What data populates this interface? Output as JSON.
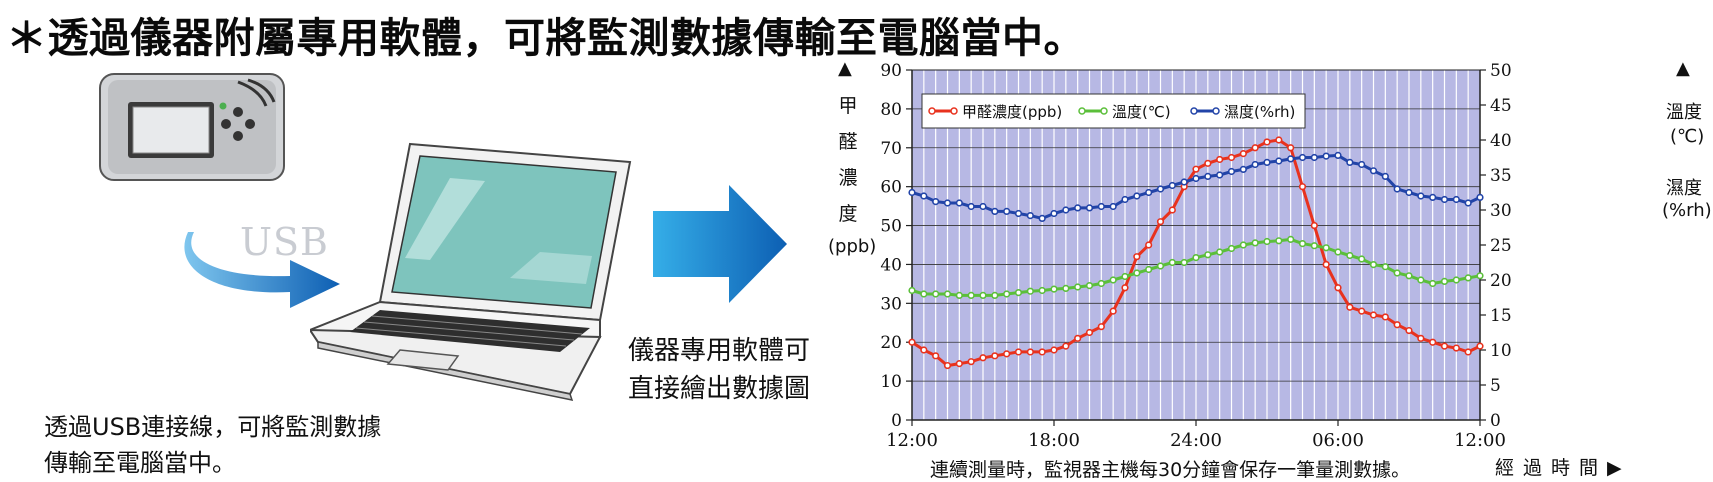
{
  "heading": "＊透過儀器附屬專用軟體，可將監測數據傳輸至電腦當中。",
  "usb_label": "USB",
  "caption_left": "透過USB連接線，可將監測數據\n傳輸至電腦當中。",
  "caption_mid": "儀器專用軟體可\n直接繪出數據圖",
  "footer": "連續測量時，監視器主機每30分鐘會保存一筆量測數據。",
  "x_axis_title": "經過時間",
  "colors": {
    "plot_bg": "#b7b8e4",
    "grid": "#ffffff",
    "formaldehyde": "#e8321e",
    "temperature": "#5bbf3a",
    "humidity": "#2244a8",
    "arrow_light": "#2fa4e3",
    "arrow_dark": "#0d5fb3"
  },
  "chart_data": {
    "type": "line",
    "grid": true,
    "legend_position": "top-left",
    "x_tick_labels": [
      "12:00",
      "18:00",
      "24:00",
      "06:00",
      "12:00"
    ],
    "x_interval_minutes": 30,
    "y_left": {
      "title_chars": [
        "甲",
        "醛",
        "濃",
        "度"
      ],
      "unit": "(ppb)",
      "range": [
        0,
        90
      ],
      "ticks": [
        0,
        10,
        20,
        30,
        40,
        50,
        60,
        70,
        80,
        90
      ]
    },
    "y_right": {
      "temp_label": "溫度",
      "temp_unit": "(℃)",
      "hum_label": "濕度",
      "hum_unit": "(%rh)",
      "range": [
        0,
        50
      ],
      "ticks": [
        0,
        5,
        10,
        15,
        20,
        25,
        30,
        35,
        40,
        45,
        50
      ]
    },
    "series": [
      {
        "name": "甲醛濃度(ppb)",
        "axis": "left",
        "color_key": "formaldehyde",
        "values": [
          20,
          18,
          16.5,
          14,
          14.5,
          15,
          16,
          16.5,
          17,
          17.5,
          17.5,
          17.5,
          18,
          19,
          21,
          22.5,
          24,
          28,
          34,
          42,
          45,
          51,
          54,
          60,
          64.5,
          66,
          67,
          67.5,
          68.5,
          70,
          71.5,
          72,
          70,
          60,
          50,
          40,
          34,
          29,
          28,
          27,
          26.5,
          24.5,
          23,
          21,
          20,
          19,
          18.5,
          17.5,
          19
        ]
      },
      {
        "name": "溫度(℃)",
        "axis": "right",
        "color_key": "temperature",
        "values": [
          18.5,
          18,
          18,
          18,
          17.8,
          17.8,
          17.8,
          17.8,
          18,
          18.2,
          18.4,
          18.5,
          18.7,
          18.8,
          19,
          19.2,
          19.5,
          20,
          20.5,
          21,
          21.5,
          22,
          22.5,
          22.5,
          23.2,
          23.6,
          24,
          24.5,
          25,
          25.3,
          25.5,
          25.6,
          25.8,
          25.2,
          24.9,
          24.6,
          24,
          23.5,
          23,
          22.2,
          21.9,
          21,
          20.6,
          20,
          19.5,
          19.8,
          20,
          20.3,
          20.6
        ]
      },
      {
        "name": "濕度(%rh)",
        "axis": "right",
        "color_key": "humidity",
        "values": [
          32.5,
          32,
          31.2,
          31,
          31,
          30.5,
          30.5,
          29.8,
          29.8,
          29.5,
          29.2,
          28.8,
          29.5,
          30,
          30.3,
          30.3,
          30.5,
          30.5,
          31.5,
          32,
          32.5,
          33,
          33.5,
          34,
          34.5,
          34.8,
          35,
          35.5,
          35.8,
          36.5,
          36.8,
          37,
          37.3,
          37.5,
          37.5,
          37.7,
          37.8,
          36.8,
          36.5,
          35.6,
          34.8,
          33,
          32.5,
          32,
          31.8,
          31.5,
          31.5,
          31,
          31.8
        ]
      }
    ]
  }
}
